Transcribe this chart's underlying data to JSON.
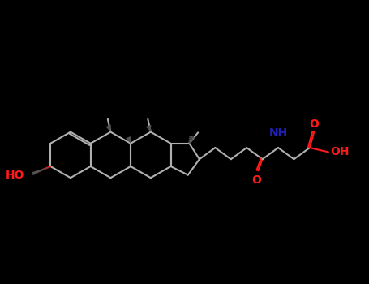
{
  "bg": "#000000",
  "bond_color": "#b0b0b0",
  "o_color": "#ff1a1a",
  "n_color": "#2020bb",
  "bond_lw": 1.5,
  "font_size": 10,
  "stereo_color": "#505050",
  "xlim": [
    -0.3,
    12.5
  ],
  "ylim": [
    0.8,
    5.5
  ]
}
